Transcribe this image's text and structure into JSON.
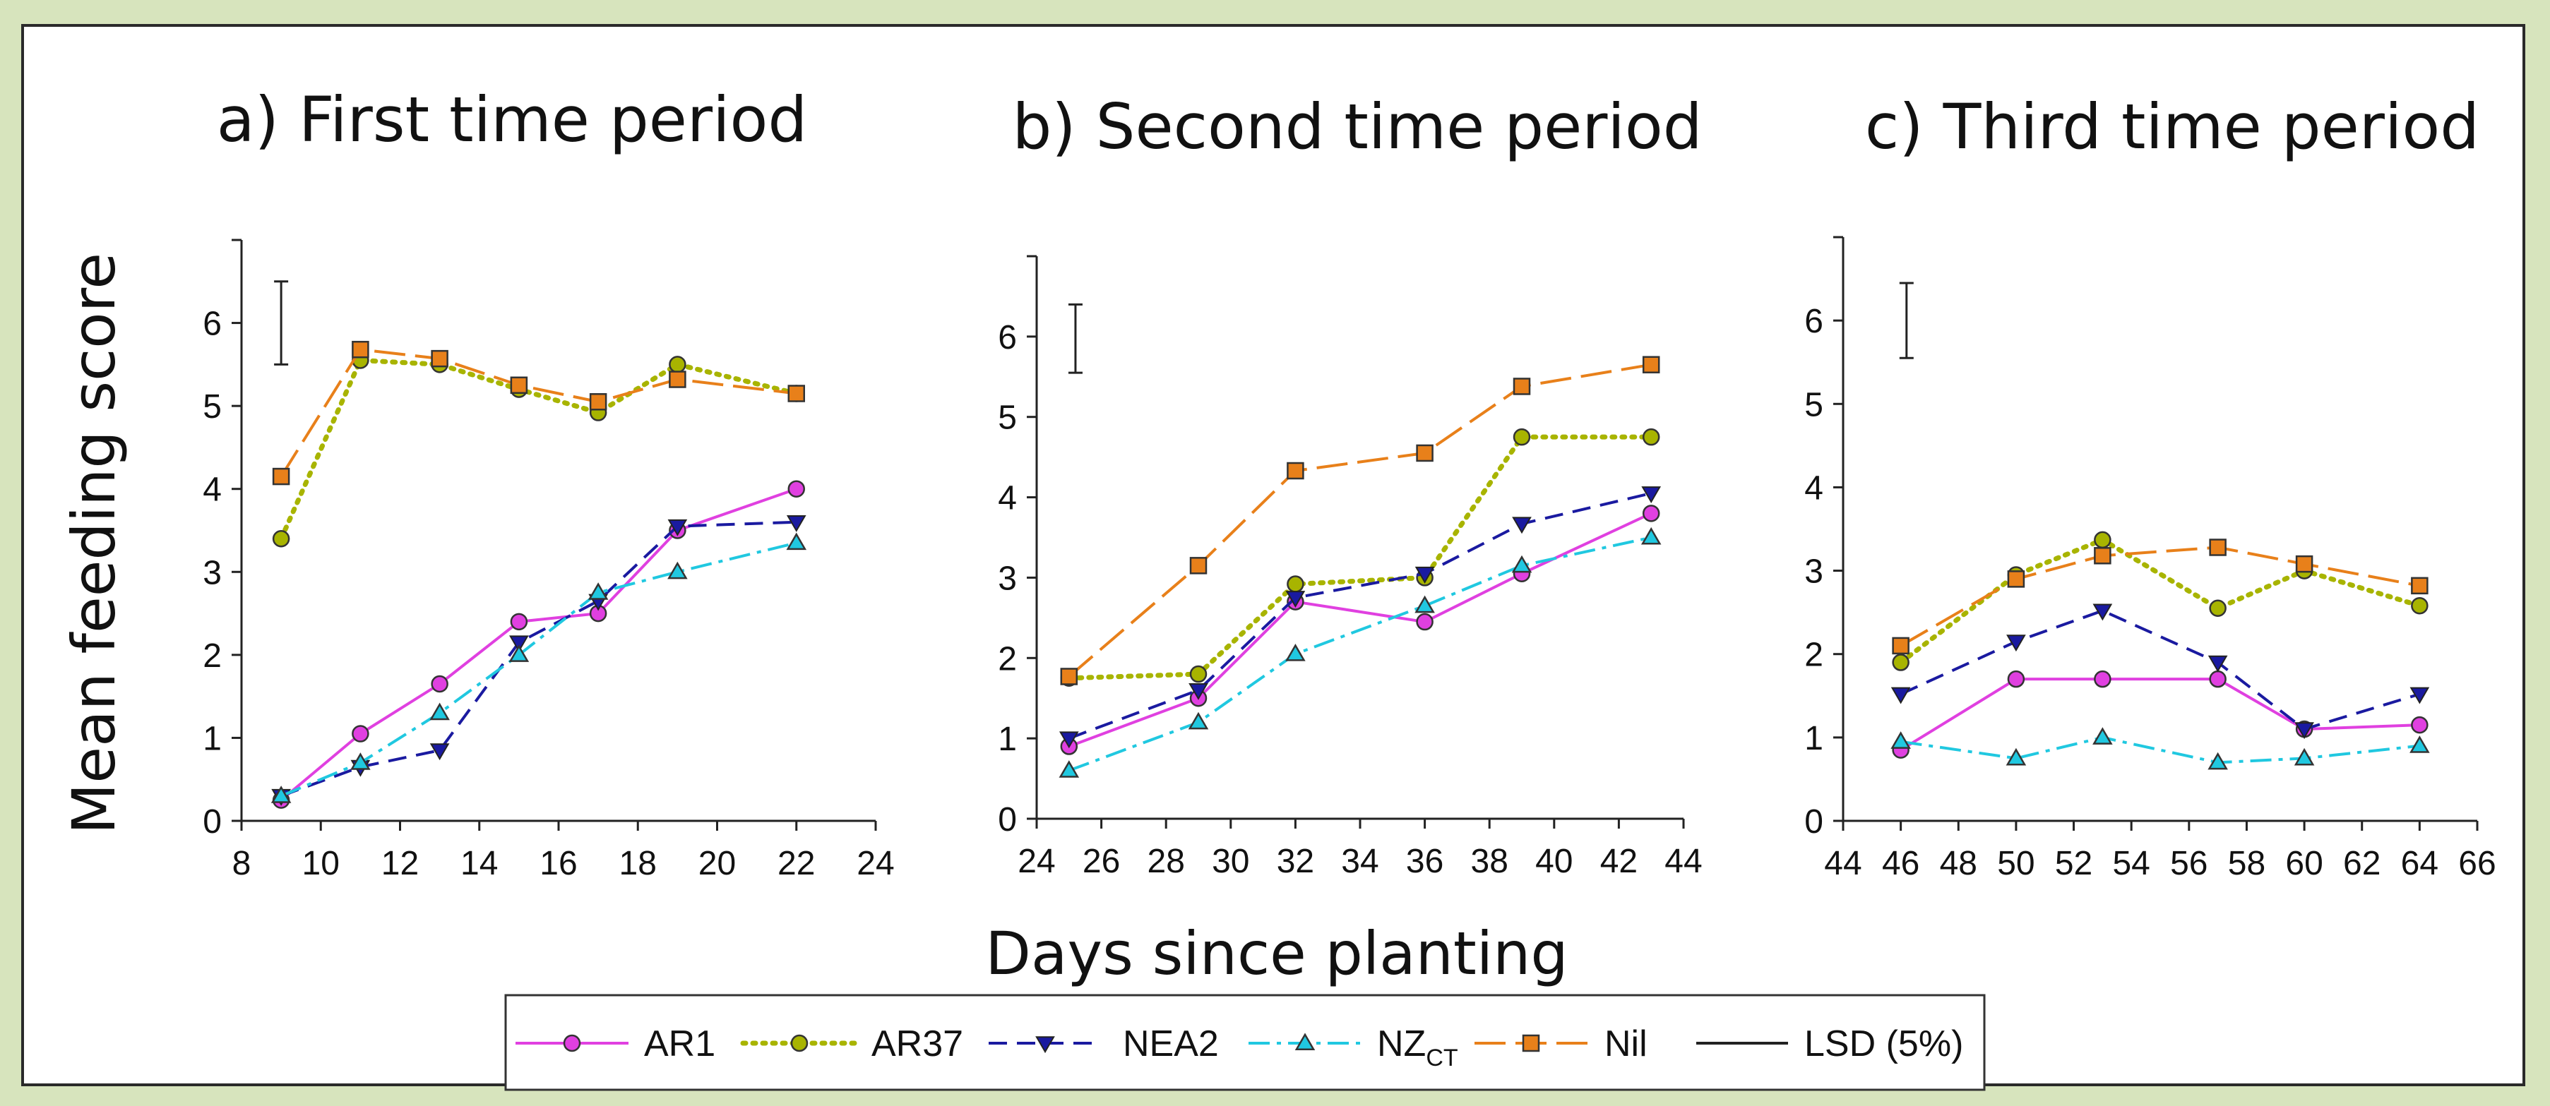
{
  "figure": {
    "shared_ylabel": "Mean feeding score",
    "shared_xlabel": "Days since planting"
  },
  "legend": {
    "entries": [
      {
        "label": "AR1",
        "sub": "",
        "color": "#e040e0",
        "line": "solid",
        "marker": "circle"
      },
      {
        "label": "AR37",
        "sub": "",
        "color": "#a8b400",
        "line": "dotted",
        "marker": "circle"
      },
      {
        "label": "NEA2",
        "sub": "",
        "color": "#1a1aa0",
        "line": "dashed",
        "marker": "triangle-down"
      },
      {
        "label": "NZ",
        "sub": "CT",
        "color": "#20c8e0",
        "line": "dashdot",
        "marker": "triangle-up"
      },
      {
        "label": "Nil",
        "sub": "",
        "color": "#e8801a",
        "line": "longdash",
        "marker": "square"
      },
      {
        "label": "LSD (5%)",
        "sub": "",
        "color": "#222222",
        "line": "solid",
        "marker": "none"
      }
    ]
  },
  "chart_data": [
    {
      "type": "line",
      "title": "a) First time period",
      "xlim": [
        8,
        24
      ],
      "xticks": [
        8,
        10,
        12,
        14,
        16,
        18,
        20,
        22,
        24
      ],
      "ylim": [
        0,
        7
      ],
      "yticks": [
        0,
        1,
        2,
        3,
        4,
        5,
        6
      ],
      "lsd": {
        "x": 9,
        "y": [
          5.5,
          6.5
        ]
      },
      "x": [
        9,
        11,
        13,
        15,
        17,
        19,
        22
      ],
      "series": [
        {
          "name": "AR1",
          "values": [
            0.25,
            1.05,
            1.65,
            2.4,
            2.5,
            3.5,
            4.0
          ]
        },
        {
          "name": "AR37",
          "values": [
            3.4,
            5.55,
            5.5,
            5.2,
            4.92,
            5.5,
            5.15
          ]
        },
        {
          "name": "NEA2",
          "values": [
            0.3,
            0.65,
            0.85,
            2.15,
            2.65,
            3.55,
            3.6
          ]
        },
        {
          "name": "NZCT",
          "values": [
            0.3,
            0.7,
            1.3,
            2.0,
            2.75,
            3.0,
            3.35
          ]
        },
        {
          "name": "Nil",
          "values": [
            4.15,
            5.68,
            5.57,
            5.25,
            5.05,
            5.32,
            5.15
          ]
        }
      ]
    },
    {
      "type": "line",
      "title": "b) Second time period",
      "xlim": [
        24,
        44
      ],
      "xticks": [
        24,
        26,
        28,
        30,
        32,
        34,
        36,
        38,
        40,
        42,
        44
      ],
      "ylim": [
        0,
        7
      ],
      "yticks": [
        0,
        1,
        2,
        3,
        4,
        5,
        6
      ],
      "lsd": {
        "x": 25.2,
        "y": [
          5.55,
          6.4
        ]
      },
      "x": [
        25,
        29,
        32,
        36,
        39,
        43
      ],
      "series": [
        {
          "name": "AR1",
          "values": [
            0.9,
            1.5,
            2.7,
            2.45,
            3.05,
            3.8
          ]
        },
        {
          "name": "AR37",
          "values": [
            1.75,
            1.8,
            2.92,
            3.0,
            4.75,
            4.75
          ]
        },
        {
          "name": "NEA2",
          "values": [
            1.0,
            1.6,
            2.75,
            3.05,
            3.67,
            4.05
          ]
        },
        {
          "name": "NZCT",
          "values": [
            0.6,
            1.2,
            2.05,
            2.65,
            3.15,
            3.5
          ]
        },
        {
          "name": "Nil",
          "values": [
            1.77,
            3.15,
            4.33,
            4.55,
            5.38,
            5.65
          ]
        }
      ]
    },
    {
      "type": "line",
      "title": "c) Third time period",
      "xlim": [
        44,
        66
      ],
      "xticks": [
        44,
        46,
        48,
        50,
        52,
        54,
        56,
        58,
        60,
        62,
        64,
        66
      ],
      "ylim": [
        0,
        7
      ],
      "yticks": [
        0,
        1,
        2,
        3,
        4,
        5,
        6
      ],
      "lsd": {
        "x": 46.2,
        "y": [
          5.55,
          6.45
        ]
      },
      "x": [
        46,
        50,
        53,
        57,
        60,
        64
      ],
      "series": [
        {
          "name": "AR1",
          "values": [
            0.85,
            1.7,
            1.7,
            1.7,
            1.1,
            1.15
          ]
        },
        {
          "name": "AR37",
          "values": [
            1.9,
            2.95,
            3.37,
            2.55,
            3.0,
            2.58
          ]
        },
        {
          "name": "NEA2",
          "values": [
            1.52,
            2.15,
            2.52,
            1.9,
            1.1,
            1.52
          ]
        },
        {
          "name": "NZCT",
          "values": [
            0.95,
            0.75,
            1.0,
            0.7,
            0.75,
            0.9
          ]
        },
        {
          "name": "Nil",
          "values": [
            2.1,
            2.9,
            3.18,
            3.28,
            3.08,
            2.82
          ]
        }
      ]
    }
  ]
}
